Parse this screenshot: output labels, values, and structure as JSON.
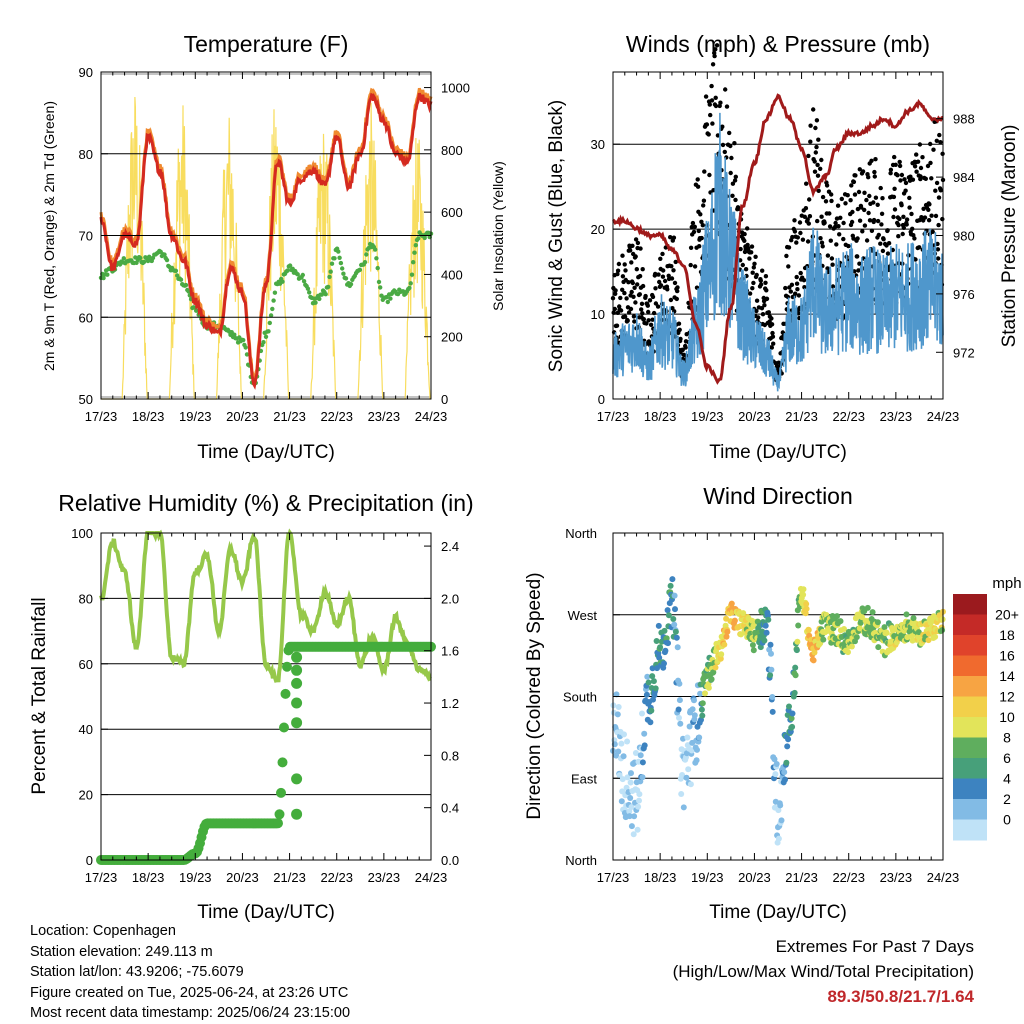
{
  "days": [
    "17/23",
    "18/23",
    "19/23",
    "20/23",
    "21/23",
    "22/23",
    "23/23",
    "24/23"
  ],
  "xlabel": "Time (Day/UTC)",
  "colors": {
    "temp2m": "#d42a20",
    "temp9m": "#f08a30",
    "dew": "#4aaa44",
    "solar": "#f7d94e",
    "wind": "#4f97cc",
    "gust": "#000000",
    "pressure": "#a01a1a",
    "rh": "#96c84a",
    "precip": "#44ad3c",
    "extremes": "#c0282b"
  },
  "charts": {
    "temperature": {
      "title": "Temperature (F)",
      "ylabel_left": "2m & 9m T (Red, Orange) & 2m Td (Green)",
      "ylabel_right": "Solar Insolation (Yellow)",
      "ylim_left": [
        50,
        90
      ],
      "ylim_right": [
        0,
        1050
      ],
      "yticks_left": [
        50,
        60,
        70,
        80,
        90
      ],
      "yticks_right": [
        0,
        200,
        400,
        600,
        800,
        1000
      ]
    },
    "winds": {
      "title": "Winds (mph) & Pressure (mb)",
      "ylabel_left": "Sonic Wind & Gust (Blue, Black)",
      "ylabel_right": "Station Pressure (Maroon)",
      "ylim_left": [
        0,
        38.5
      ],
      "ylim_right": [
        968.8,
        991.2
      ],
      "yticks_left": [
        0,
        10,
        20,
        30
      ],
      "yticks_right": [
        972,
        976,
        980,
        984,
        988
      ]
    },
    "humidity": {
      "title": "Relative Humidity (%) & Precipitation (in)",
      "ylabel_left": "Percent & Total Rainfall",
      "ylim_left": [
        0,
        100
      ],
      "ylim_right": [
        0,
        2.5
      ],
      "yticks_left": [
        0,
        20,
        40,
        60,
        80,
        100
      ],
      "yticks_right": [
        "0.0",
        "0.4",
        "0.8",
        "1.2",
        "1.6",
        "2.0",
        "2.4"
      ]
    },
    "direction": {
      "title": "Wind Direction",
      "ylabel_left": "Direction (Colored By Speed)",
      "yticks": [
        "North",
        "East",
        "South",
        "West",
        "North"
      ],
      "legend_title": "mph",
      "legend_labels": [
        "20+",
        "18",
        "16",
        "14",
        "12",
        "10",
        "8",
        "6",
        "4",
        "2",
        "0"
      ],
      "legend_colors": [
        "#9b1a1e",
        "#c42a27",
        "#e0432b",
        "#f06a2e",
        "#f7a443",
        "#f2d04a",
        "#e2e45a",
        "#5fae5e",
        "#47a07a",
        "#3d83c0",
        "#82bbe5",
        "#bfe2f7"
      ]
    }
  },
  "chart_data": [
    {
      "type": "line",
      "title": "Temperature (F)",
      "xlabel": "Time (Day/UTC)",
      "ylabel": "2m & 9m T (Red, Orange) & 2m Td (Green)",
      "y2label": "Solar Insolation (Yellow)",
      "ylim": [
        50,
        90
      ],
      "y2lim": [
        0,
        1050
      ],
      "x": [
        0,
        0.25,
        0.5,
        0.75,
        1,
        1.25,
        1.5,
        1.75,
        2,
        2.25,
        2.5,
        2.75,
        3,
        3.25,
        3.5,
        3.75,
        4,
        4.25,
        4.5,
        4.75,
        5,
        5.25,
        5.5,
        5.75,
        6,
        6.25,
        6.5,
        6.75,
        7
      ],
      "series": [
        {
          "values": [
            72,
            66,
            70,
            69,
            82,
            78,
            70,
            67,
            62,
            59,
            58,
            66,
            63,
            52,
            64,
            79,
            74,
            77,
            78,
            76,
            82,
            76,
            80,
            87,
            84,
            80,
            79,
            87,
            86
          ]
        },
        {
          "values": [
            65,
            66,
            67,
            67,
            67,
            68,
            66,
            64,
            61,
            59,
            59,
            58,
            57,
            52,
            58,
            64,
            66,
            65,
            62,
            63,
            68,
            64,
            66,
            69,
            62,
            63,
            63,
            70,
            70
          ]
        },
        {
          "values": [
            0,
            0,
            0,
            0,
            1020,
            400,
            0,
            0,
            980,
            350,
            0,
            0,
            950,
            380,
            0,
            0,
            980,
            420,
            0,
            0,
            900,
            380,
            0,
            0,
            960,
            420,
            0,
            0,
            0
          ]
        }
      ]
    },
    {
      "type": "scatter",
      "title": "Winds (mph) & Pressure (mb)",
      "xlabel": "Time (Day/UTC)",
      "ylabel": "Sonic Wind & Gust (Blue, Black)",
      "y2label": "Station Pressure (Maroon)",
      "ylim": [
        0,
        38.5
      ],
      "y2lim": [
        968.8,
        991.2
      ],
      "x": [
        0,
        0.25,
        0.5,
        0.75,
        1,
        1.25,
        1.5,
        1.75,
        2,
        2.25,
        2.5,
        2.75,
        3,
        3.25,
        3.5,
        3.75,
        4,
        4.25,
        4.5,
        4.75,
        5,
        5.25,
        5.5,
        5.75,
        6,
        6.25,
        6.5,
        6.75,
        7
      ],
      "series": [
        {
          "values": [
            5,
            6,
            7,
            4,
            8,
            7,
            3,
            8,
            14,
            22,
            16,
            10,
            7,
            5,
            2,
            8,
            8,
            14,
            10,
            11,
            12,
            11,
            12,
            11,
            12,
            12,
            13,
            13,
            12
          ]
        },
        {
          "values": [
            11,
            12,
            14,
            8,
            12,
            14,
            4,
            18,
            25,
            30,
            22,
            16,
            12,
            10,
            3,
            14,
            16,
            24,
            18,
            16,
            18,
            19,
            20,
            18,
            20,
            20,
            21,
            23,
            22
          ]
        },
        {
          "values": [
            981,
            981,
            980.5,
            980,
            980,
            979,
            978,
            974,
            971,
            970,
            975,
            982,
            985,
            988,
            989.5,
            988,
            986,
            983,
            984,
            986,
            987,
            987,
            987.5,
            988,
            987.5,
            988.5,
            989,
            988,
            988
          ]
        }
      ]
    },
    {
      "type": "line",
      "title": "Relative Humidity (%) & Precipitation (in)",
      "xlabel": "Time (Day/UTC)",
      "ylabel": "Percent & Total Rainfall",
      "ylim": [
        0,
        100
      ],
      "y2lim": [
        0,
        2.5
      ],
      "x": [
        0,
        0.25,
        0.5,
        0.75,
        1,
        1.25,
        1.5,
        1.75,
        2,
        2.25,
        2.5,
        2.75,
        3,
        3.25,
        3.5,
        3.75,
        4,
        4.25,
        4.5,
        4.75,
        5,
        5.25,
        5.5,
        5.75,
        6,
        6.25,
        6.5,
        6.75,
        7
      ],
      "series": [
        {
          "values": [
            80,
            97,
            88,
            65,
            100,
            100,
            62,
            60,
            88,
            93,
            70,
            95,
            85,
            99,
            60,
            55,
            100,
            75,
            70,
            82,
            72,
            80,
            60,
            68,
            58,
            74,
            66,
            58,
            56
          ]
        },
        {
          "values": [
            0,
            0,
            0,
            0,
            0,
            0,
            0,
            0,
            0.05,
            0.28,
            0.28,
            0.28,
            0.28,
            0.28,
            0.28,
            0.28,
            1.63,
            1.63,
            1.63,
            1.63,
            1.63,
            1.63,
            1.63,
            1.63,
            1.63,
            1.63,
            1.63,
            1.63,
            1.63
          ]
        }
      ]
    },
    {
      "type": "scatter",
      "title": "Wind Direction",
      "xlabel": "Time (Day/UTC)",
      "ylabel": "Direction (Colored By Speed)",
      "ylim": [
        0,
        360
      ],
      "x": [
        0,
        0.25,
        0.5,
        0.75,
        1,
        1.25,
        1.5,
        1.75,
        2,
        2.25,
        2.5,
        2.75,
        3,
        3.25,
        3.5,
        3.75,
        4,
        4.25,
        4.5,
        4.75,
        5,
        5.25,
        5.5,
        5.75,
        6,
        6.25,
        6.5,
        6.75,
        7
      ],
      "series": [
        {
          "values": [
            160,
            90,
            70,
            180,
            230,
            280,
            100,
            150,
            200,
            230,
            270,
            260,
            250,
            265,
            60,
            150,
            290,
            230,
            260,
            250,
            240,
            265,
            255,
            240,
            245,
            255,
            250,
            255,
            265
          ]
        },
        {
          "values": [
            2,
            1,
            2,
            5,
            7,
            6,
            1,
            3,
            9,
            12,
            14,
            12,
            10,
            6,
            2,
            6,
            10,
            14,
            10,
            10,
            9,
            10,
            10,
            9,
            11,
            10,
            11,
            12,
            11
          ]
        }
      ]
    }
  ],
  "info": {
    "location": "Location: Copenhagen",
    "elevation": "Station elevation: 249.113 m",
    "latlon": "Station lat/lon: 43.9206; -75.6079",
    "created": "Figure created on Tue, 2025-06-24, at 23:26 UTC",
    "recent": "Most recent data timestamp: 2025/06/24 23:15:00"
  },
  "extremes": {
    "title": "Extremes For Past 7 Days",
    "subtitle": "(High/Low/Max Wind/Total Precipitation)",
    "values": "89.3/50.8/21.7/1.64"
  }
}
